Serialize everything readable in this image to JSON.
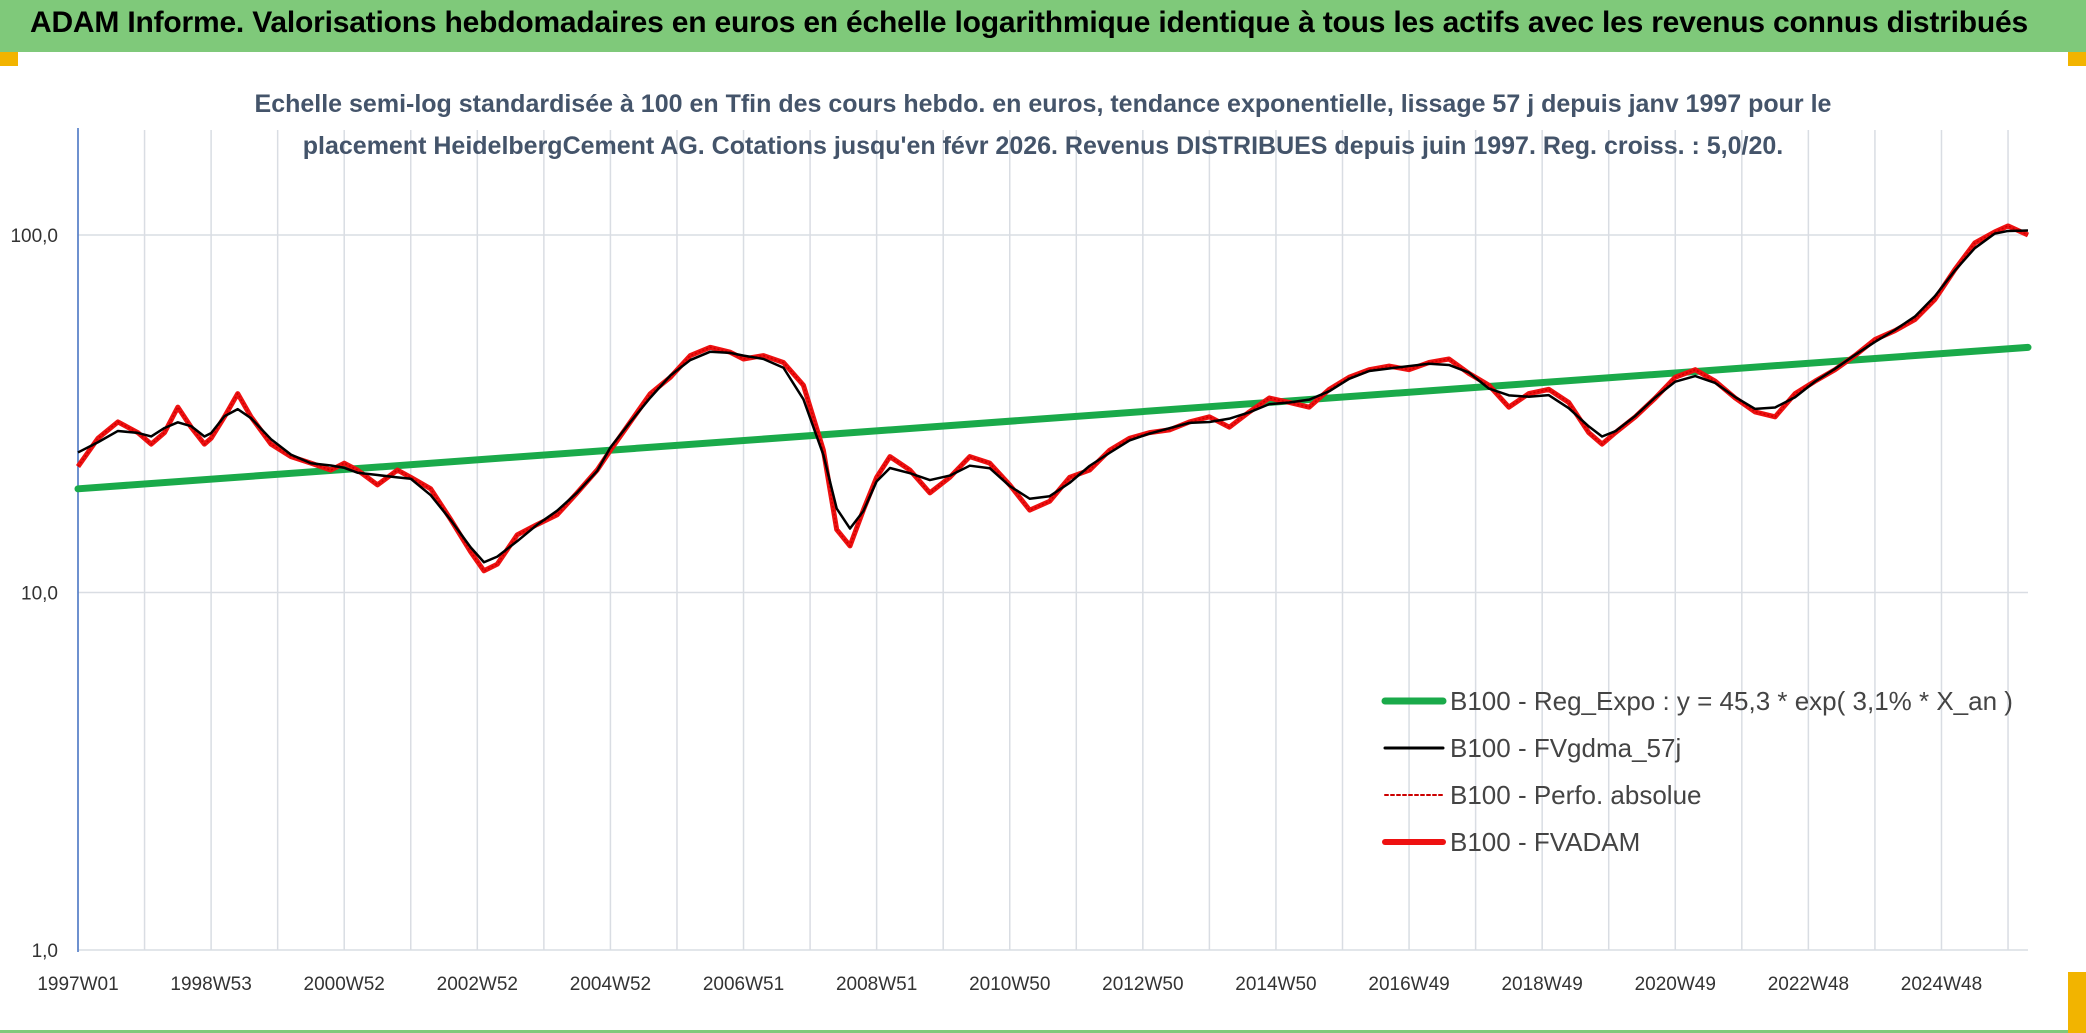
{
  "header": {
    "title": "ADAM Informe. Valorisations hebdomadaires en euros en échelle logarithmique identique à tous les actifs avec les revenus connus distribués"
  },
  "colors": {
    "header_bg": "#7fc97a",
    "regression": "#1aaa4a",
    "smoothed": "#000000",
    "absolute": "#cc0000",
    "fvadam": "#ee1111",
    "grid": "#d9dde3",
    "axis": "#4472c4",
    "subtitle": "#44546a"
  },
  "chart_data": {
    "type": "line",
    "title_line1": "Echelle semi-log standardisée à 100 en Tfin des cours hebdo. en euros, tendance exponentielle, lissage 57 j depuis janv 1997 pour le",
    "title_line2": "placement HeidelbergCement AG. Cotations jusqu'en févr 2026. Revenus DISTRIBUES depuis juin 1997. Reg. croiss. : 5,0/20.",
    "y_scale": "log",
    "ylim": [
      1,
      200
    ],
    "y_ticks": [
      {
        "value": 1,
        "label": "1,0"
      },
      {
        "value": 10,
        "label": "10,0"
      },
      {
        "value": 100,
        "label": "100,0"
      }
    ],
    "xlim": [
      1997.0,
      2026.3
    ],
    "x_ticks": [
      {
        "x": 1997.0,
        "label": "1997W01"
      },
      {
        "x": 1999.0,
        "label": "1998W53"
      },
      {
        "x": 2001.0,
        "label": "2000W52"
      },
      {
        "x": 2003.0,
        "label": "2002W52"
      },
      {
        "x": 2005.0,
        "label": "2004W52"
      },
      {
        "x": 2007.0,
        "label": "2006W51"
      },
      {
        "x": 2009.0,
        "label": "2008W51"
      },
      {
        "x": 2011.0,
        "label": "2010W50"
      },
      {
        "x": 2013.0,
        "label": "2012W50"
      },
      {
        "x": 2015.0,
        "label": "2014W50"
      },
      {
        "x": 2017.0,
        "label": "2016W49"
      },
      {
        "x": 2019.0,
        "label": "2018W49"
      },
      {
        "x": 2021.0,
        "label": "2020W49"
      },
      {
        "x": 2023.0,
        "label": "2022W48"
      },
      {
        "x": 2025.0,
        "label": "2024W48"
      }
    ],
    "grid": true,
    "legend_position": "bottom-right",
    "series": [
      {
        "key": "regression",
        "name": "B100 - Reg_Expo : y = 45,3 * exp( 3,1% *  X_an )",
        "style": "thick",
        "x": [
          1997.0,
          2026.3
        ],
        "values": [
          19.5,
          48.5
        ]
      },
      {
        "key": "smoothed",
        "name": "B100 - FVgdma_57j",
        "style": "thin",
        "x": [],
        "values": []
      },
      {
        "key": "absolute",
        "name": "B100 - Perfo. absolue",
        "style": "dotted",
        "x": [],
        "values": []
      },
      {
        "key": "fvadam",
        "name": "B100 - FVADAM",
        "style": "thick",
        "x": [
          1997.0,
          1997.3,
          1997.6,
          1997.9,
          1998.1,
          1998.3,
          1998.5,
          1998.7,
          1998.9,
          1999.0,
          1999.2,
          1999.4,
          1999.6,
          1999.9,
          2000.2,
          2000.5,
          2000.8,
          2001.0,
          2001.2,
          2001.5,
          2001.8,
          2002.0,
          2002.3,
          2002.6,
          2002.9,
          2003.1,
          2003.3,
          2003.6,
          2003.9,
          2004.2,
          2004.5,
          2004.8,
          2005.0,
          2005.3,
          2005.6,
          2005.9,
          2006.2,
          2006.5,
          2006.8,
          2007.0,
          2007.3,
          2007.6,
          2007.9,
          2008.2,
          2008.4,
          2008.6,
          2008.8,
          2009.0,
          2009.2,
          2009.5,
          2009.8,
          2010.1,
          2010.4,
          2010.7,
          2011.0,
          2011.3,
          2011.6,
          2011.9,
          2012.2,
          2012.5,
          2012.8,
          2013.1,
          2013.4,
          2013.7,
          2014.0,
          2014.3,
          2014.6,
          2014.9,
          2015.2,
          2015.5,
          2015.8,
          2016.1,
          2016.4,
          2016.7,
          2017.0,
          2017.3,
          2017.6,
          2017.9,
          2018.2,
          2018.5,
          2018.8,
          2019.1,
          2019.4,
          2019.7,
          2019.9,
          2020.1,
          2020.4,
          2020.7,
          2021.0,
          2021.3,
          2021.6,
          2021.9,
          2022.2,
          2022.5,
          2022.8,
          2023.1,
          2023.4,
          2023.7,
          2024.0,
          2024.3,
          2024.6,
          2024.9,
          2025.2,
          2025.5,
          2025.8,
          2026.0,
          2026.3
        ],
        "values": [
          22.5,
          27,
          30,
          28,
          26,
          28,
          33,
          29,
          26,
          27,
          31,
          36,
          31,
          26,
          24,
          23,
          22,
          23,
          22,
          20,
          22,
          21,
          19.5,
          16,
          13,
          11.5,
          12,
          14.5,
          15.5,
          16.5,
          19,
          22,
          25,
          30,
          36,
          40,
          46,
          48.5,
          47,
          45,
          46,
          44,
          38,
          25,
          15,
          13.5,
          17,
          21,
          24,
          22,
          19,
          21,
          24,
          23,
          20,
          17,
          18,
          21,
          22,
          25,
          27,
          28,
          28.5,
          30,
          31,
          29,
          32,
          35,
          34,
          33,
          37,
          40,
          42,
          43,
          42,
          44,
          45,
          41,
          38,
          33,
          36,
          37,
          34,
          28,
          26,
          28,
          31,
          35,
          40,
          42,
          39,
          35,
          32,
          31,
          36,
          39,
          42,
          46,
          51,
          54,
          58,
          66,
          80,
          95,
          102,
          106,
          100
        ]
      }
    ]
  }
}
